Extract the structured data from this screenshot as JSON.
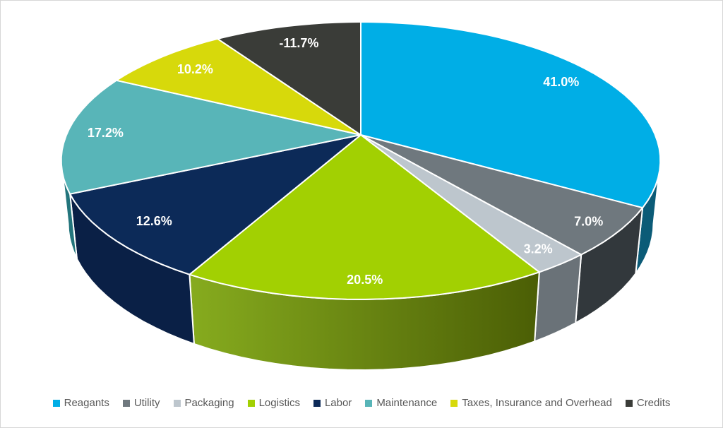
{
  "chart_data": {
    "type": "pie",
    "projection": "3d",
    "title": "",
    "categories": [
      "Reagants",
      "Utility",
      "Packaging",
      "Logistics",
      "Labor",
      "Maintenance",
      "Taxes, Insurance and Overhead",
      "Credits"
    ],
    "values": [
      41.0,
      7.0,
      3.2,
      20.5,
      12.6,
      17.2,
      10.2,
      -11.7
    ],
    "data_labels": [
      "41.0%",
      "7.0%",
      "3.2%",
      "20.5%",
      "12.6%",
      "17.2%",
      "10.2%",
      "-11.7%"
    ],
    "slice_colors": [
      "#00AEE6",
      "#6F787E",
      "#BDC6CD",
      "#A2D002",
      "#0C2A58",
      "#58B5B8",
      "#D7D90B",
      "#3A3C38"
    ],
    "wall_colors": [
      "#0B5B77",
      "#32383C",
      "#6A7278",
      "#86AB1E",
      "#0A2046",
      "#23757C",
      "#8F9107",
      "#242622"
    ],
    "logistics_wall_gradient": {
      "from": "#86AB1E",
      "to": "#4A5D05"
    },
    "slice_border_color": "#FFFFFF",
    "data_label_color": "#FFFFFF",
    "start_angle_deg": 0,
    "legend": {
      "position": "bottom",
      "text_color": "#595959"
    }
  }
}
